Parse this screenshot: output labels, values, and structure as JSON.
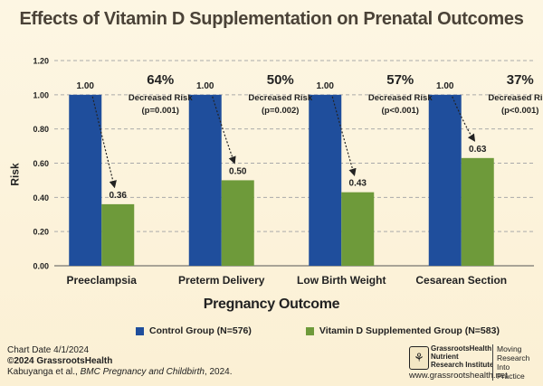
{
  "chart_data": {
    "type": "bar",
    "title": "Effects of Vitamin D Supplementation on Prenatal Outcomes",
    "xlabel": "Pregnancy Outcome",
    "ylabel": "Risk",
    "ylim": [
      0,
      1.2
    ],
    "yticks": [
      "0.00",
      "0.20",
      "0.40",
      "0.60",
      "0.80",
      "1.00",
      "1.20"
    ],
    "grid": true,
    "legend_position": "bottom",
    "categories": [
      "Preeclampsia",
      "Preterm Delivery",
      "Low Birth Weight",
      "Cesarean Section"
    ],
    "series": [
      {
        "name": "Control Group (N=576)",
        "color": "#1f4e9c",
        "values": [
          1.0,
          1.0,
          1.0,
          1.0
        ],
        "labels": [
          "1.00",
          "1.00",
          "1.00",
          "1.00"
        ]
      },
      {
        "name": "Vitamin D Supplemented Group (N=583)",
        "color": "#6e9a3a",
        "values": [
          0.36,
          0.5,
          0.43,
          0.63
        ],
        "labels": [
          "0.36",
          "0.50",
          "0.43",
          "0.63"
        ]
      }
    ],
    "annotations": [
      {
        "percent": "64%",
        "text": "Decreased Risk",
        "p": "(p=0.001)"
      },
      {
        "percent": "50%",
        "text": "Decreased Risk",
        "p": "(p=0.002)"
      },
      {
        "percent": "57%",
        "text": "Decreased Risk",
        "p": "(p<0.001)"
      },
      {
        "percent": "37%",
        "text": "Decreased Risk",
        "p": "(p<0.001)"
      }
    ]
  },
  "footer": {
    "chart_date": "Chart Date 4/1/2024",
    "copyright": "©2024 GrassrootsHealth",
    "citation_authors": "Kabuyanga  et al., ",
    "citation_journal": "BMC Pregnancy and Childbirth",
    "citation_year": ", 2024."
  },
  "logo": {
    "name_line1": "GrassrootsHealth",
    "name_line2": "Nutrient",
    "name_line3": "Research Institute",
    "tag_line1": "Moving",
    "tag_line2": "Research",
    "tag_line3": "Into Practice",
    "url": "www.grassrootshealth.net"
  }
}
